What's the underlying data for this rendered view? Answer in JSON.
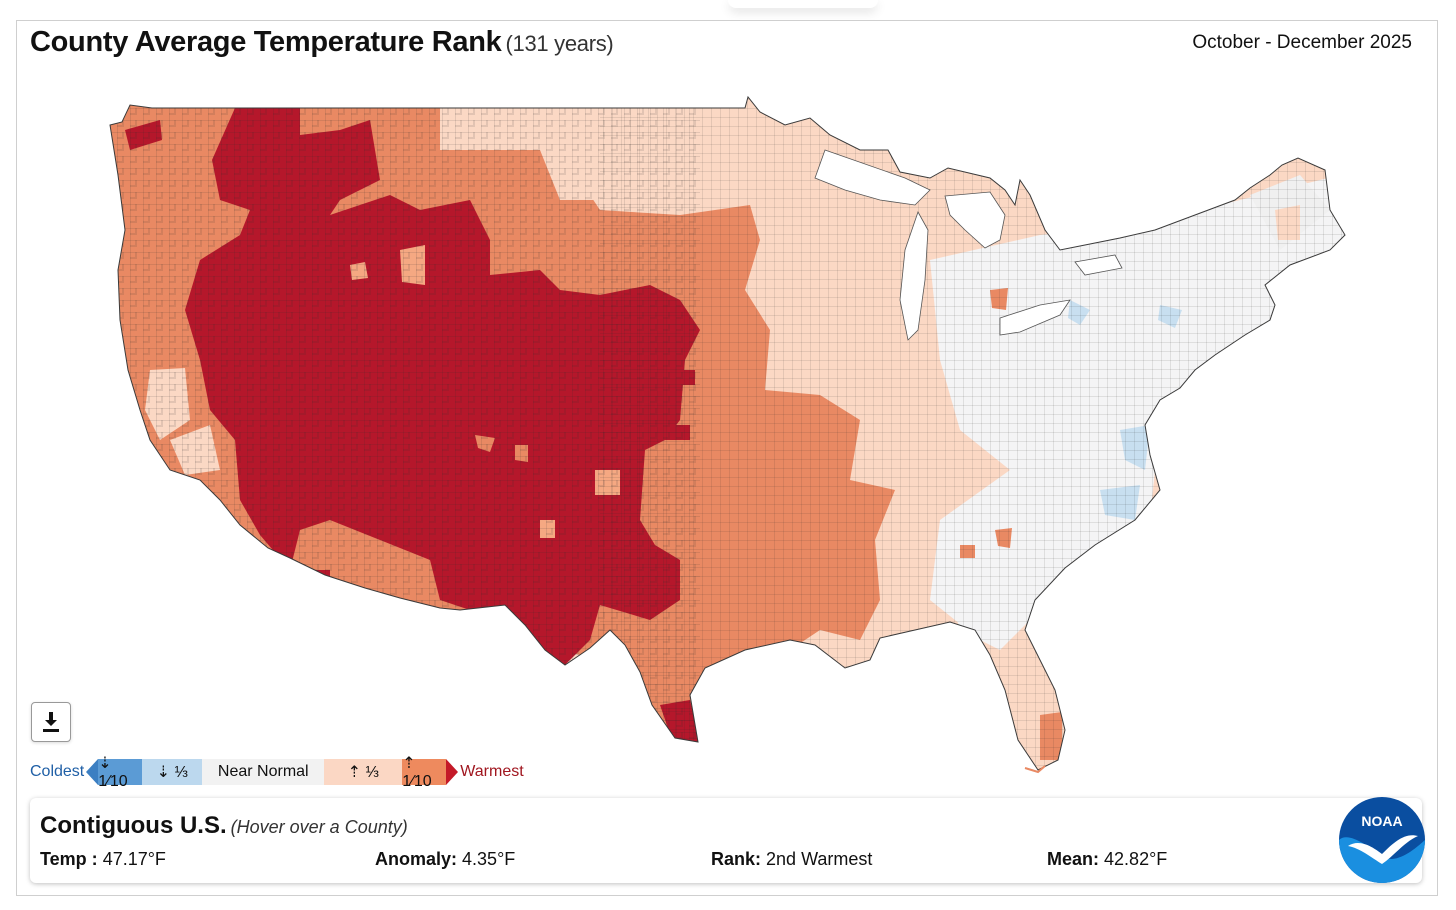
{
  "header": {
    "title": "County Average Temperature Rank",
    "subtitle": "(131 years)",
    "period": "October - December 2025"
  },
  "map": {
    "region": "Contiguous U.S.",
    "palette": {
      "record_warm": "#b5172b",
      "warmest_tenth": "#e98963",
      "warmest_third": "#fbd8c4",
      "near_normal": "#f4f4f5",
      "coldest_third": "#c8dff0",
      "outline": "#2a2a2a"
    }
  },
  "toolbar": {
    "download_icon": "download-icon"
  },
  "legend": {
    "coldest_label": "Coldest",
    "warmest_label": "Warmest",
    "items": [
      {
        "label": "⇣ 1⁄10",
        "color": "#5b9bd5"
      },
      {
        "label": "⇣ ⅓",
        "color": "#bcd8ee"
      },
      {
        "label": "Near Normal",
        "color": "#f2f2f2"
      },
      {
        "label": "⇡ ⅓",
        "color": "#fbd7c4"
      },
      {
        "label": "⇡ 1⁄10",
        "color": "#ee8a5e"
      }
    ]
  },
  "info": {
    "name": "Contiguous U.S.",
    "hint": "(Hover over a County)",
    "temp_label": "Temp :",
    "temp_value": "47.17°F",
    "anomaly_label": "Anomaly:",
    "anomaly_value": "4.35°F",
    "rank_label": "Rank:",
    "rank_value": "2nd Warmest",
    "mean_label": "Mean:",
    "mean_value": "42.82°F"
  },
  "logo": {
    "text": "NOAA"
  }
}
